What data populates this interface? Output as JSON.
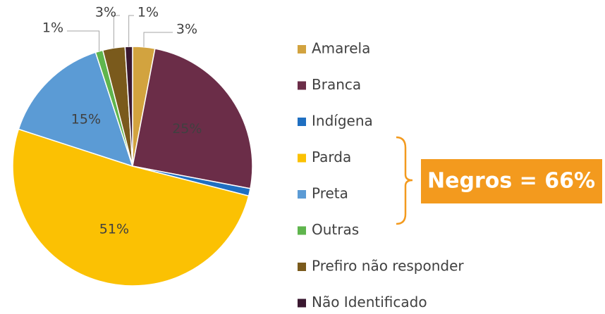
{
  "chart_data": {
    "type": "pie",
    "categories": [
      "Amarela",
      "Branca",
      "Indígena",
      "Parda",
      "Preta",
      "Outras",
      "Prefiro não responder",
      "Não Identificado"
    ],
    "values": [
      3,
      25,
      1,
      51,
      15,
      1,
      3,
      1
    ],
    "value_labels": [
      "3%",
      "25%",
      null,
      "51%",
      "15%",
      "1%",
      "3%",
      "1%"
    ],
    "colors": [
      "#d2a33f",
      "#6b2d48",
      "#1f6fc1",
      "#fbc103",
      "#5b9bd5",
      "#5fb54d",
      "#7a5a1c",
      "#3a1830"
    ],
    "legend": "right",
    "annotation": "Negros = 66%"
  }
}
